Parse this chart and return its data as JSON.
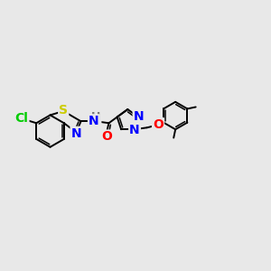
{
  "background_color": "#e8e8e8",
  "bond_color": "#000000",
  "atoms": {
    "Cl": {
      "color": "#00cc00",
      "fontsize": 10
    },
    "S": {
      "color": "#cccc00",
      "fontsize": 10
    },
    "N": {
      "color": "#0000ff",
      "fontsize": 10
    },
    "O": {
      "color": "#ff0000",
      "fontsize": 10
    },
    "H": {
      "color": "#777777",
      "fontsize": 9
    }
  },
  "figsize": [
    3.0,
    3.0
  ],
  "dpi": 100
}
